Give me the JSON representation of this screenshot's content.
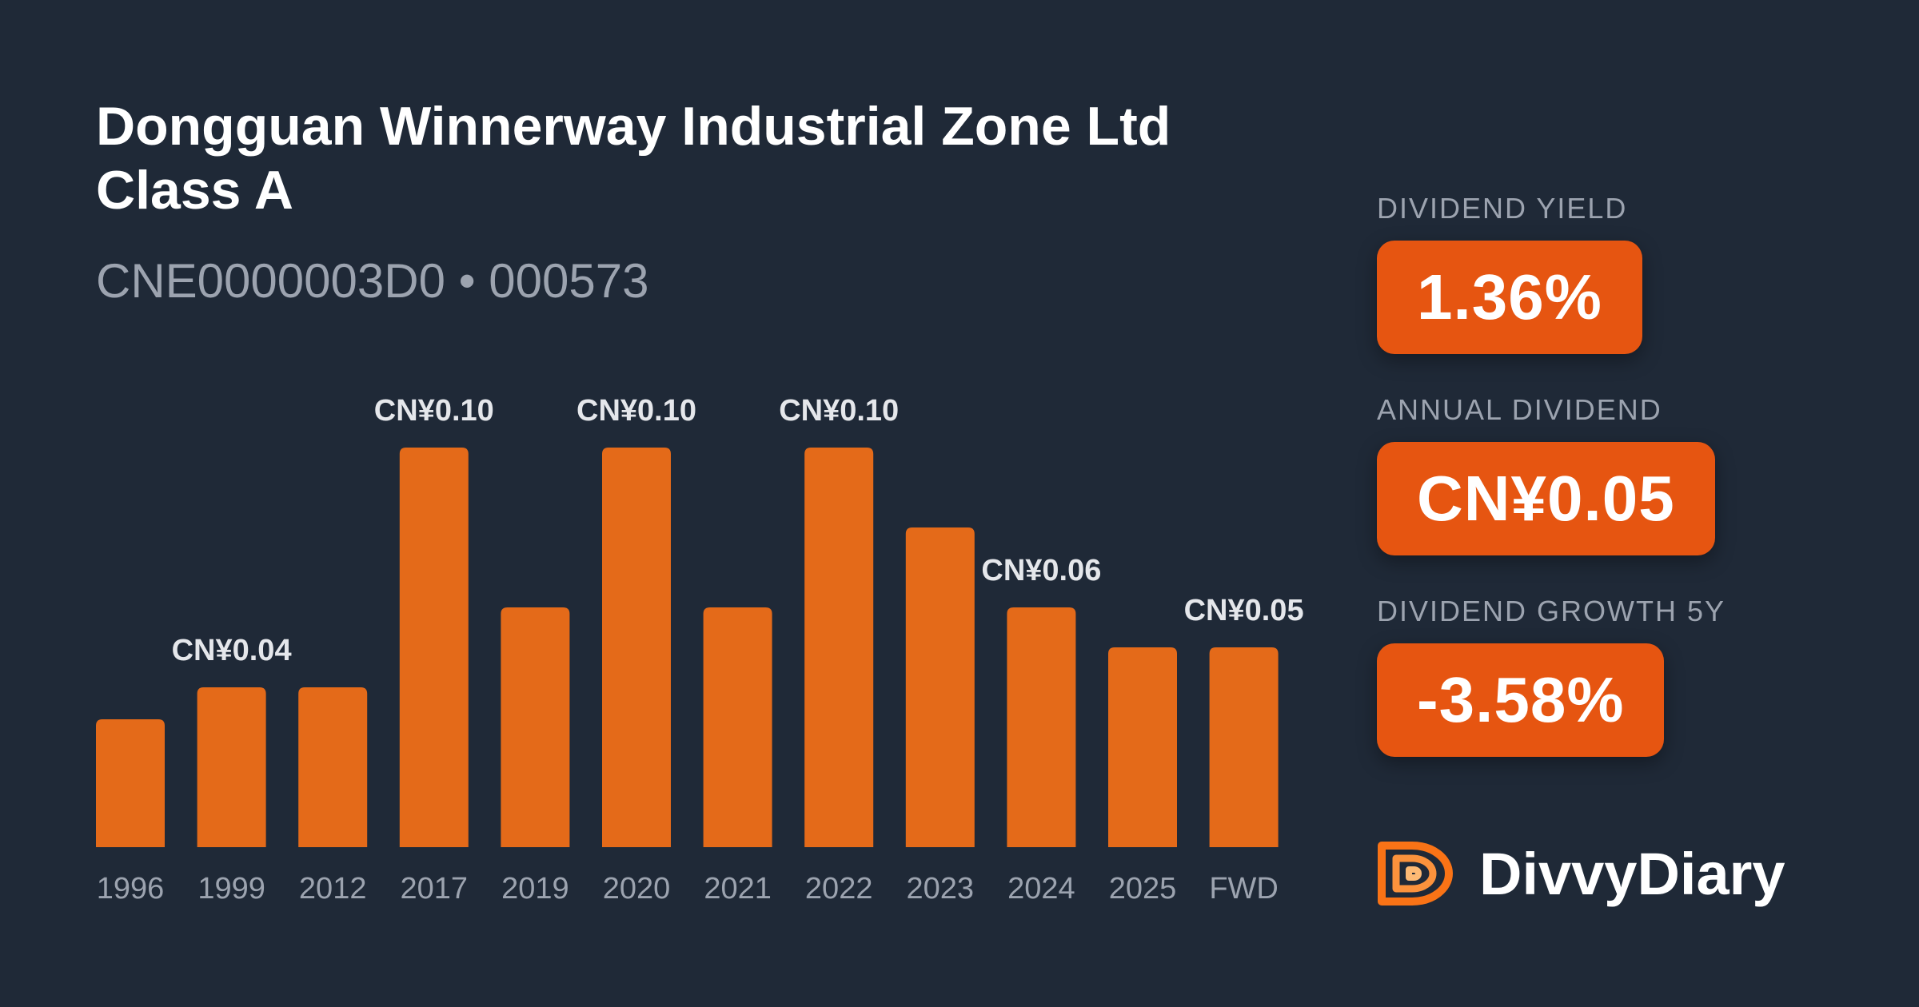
{
  "header": {
    "title_line1": "Dongguan Winnerway Industrial Zone Ltd",
    "title_line2": "Class A",
    "subtitle": "CNE0000003D0 • 000573"
  },
  "stats": {
    "yield_label": "DIVIDEND YIELD",
    "yield_value": "1.36%",
    "annual_label": "ANNUAL DIVIDEND",
    "annual_value": "CN¥0.05",
    "growth_label": "DIVIDEND GROWTH 5Y",
    "growth_value": "-3.58%"
  },
  "brand": {
    "name": "DivvyDiary",
    "logo_icon": "divvydiary-logo-icon"
  },
  "colors": {
    "background": "#1f2937",
    "bar": "#e46a19",
    "pill": "#e65511"
  },
  "chart_data": {
    "type": "bar",
    "categories": [
      "1996",
      "1999",
      "2012",
      "2017",
      "2019",
      "2020",
      "2021",
      "2022",
      "2023",
      "2024",
      "2025",
      "FWD"
    ],
    "values": [
      0.032,
      0.04,
      0.04,
      0.1,
      0.06,
      0.1,
      0.06,
      0.1,
      0.08,
      0.06,
      0.05,
      0.05
    ],
    "data_labels": [
      "",
      "CN¥0.04",
      "",
      "CN¥0.10",
      "",
      "CN¥0.10",
      "",
      "CN¥0.10",
      "",
      "CN¥0.06",
      "",
      "CN¥0.05"
    ],
    "title": "",
    "xlabel": "",
    "ylabel": "",
    "ylim": [
      0,
      0.1
    ],
    "grid": false
  }
}
